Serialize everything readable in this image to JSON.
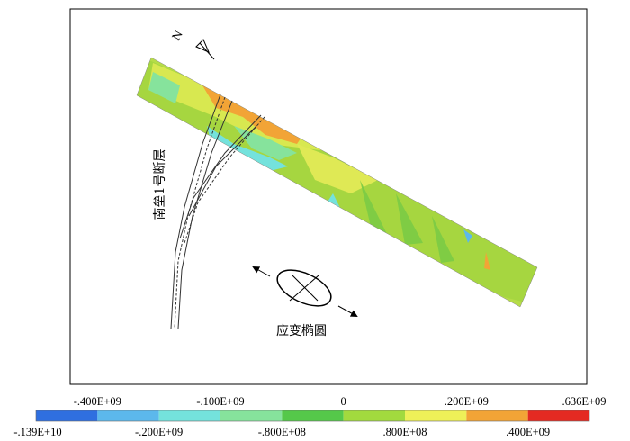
{
  "figure": {
    "fault_label": "南垒1号断层",
    "ellipse_label": "应变椭圆",
    "north_label": "N"
  },
  "colorbar": {
    "colors": [
      "#2f6fe0",
      "#5cb8ec",
      "#74e2dc",
      "#86e39c",
      "#55c84a",
      "#a2da3e",
      "#eef058",
      "#f2a436",
      "#e42a22"
    ],
    "labels": [
      "-.139E+10",
      "-.400E+09",
      "-.200E+09",
      "-.100E+09",
      "-.800E+08",
      "0",
      ".800E+08",
      ".200E+09",
      ".400E+09",
      ".636E+09"
    ]
  }
}
